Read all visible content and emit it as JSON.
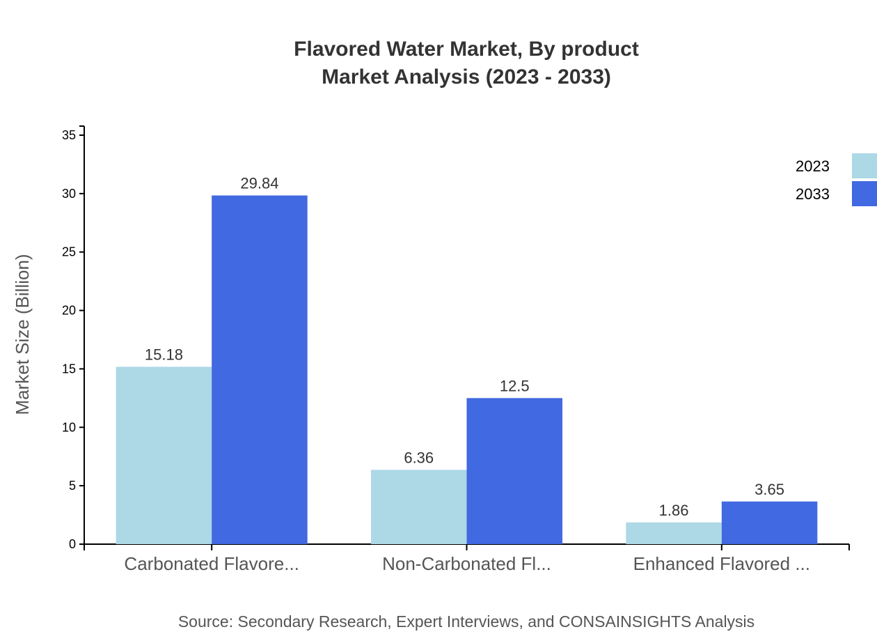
{
  "chart_data": {
    "type": "bar",
    "title": "Flavored Water Market, By product",
    "subtitle": "Market Analysis (2023 - 2033)",
    "xlabel": "",
    "ylabel": "Market Size (Billion)",
    "ylim": [
      0,
      35
    ],
    "yticks": [
      "0",
      "5",
      "10",
      "15",
      "20",
      "25",
      "30",
      "35"
    ],
    "categories": [
      "Carbonated Flavore...",
      "Non-Carbonated Fl...",
      "Enhanced Flavored ..."
    ],
    "series": [
      {
        "name": "2023",
        "color": "#ADD8E6",
        "values": [
          15.18,
          6.36,
          1.86
        ],
        "labels": [
          "15.18",
          "6.36",
          "1.86"
        ]
      },
      {
        "name": "2033",
        "color": "#4169E1",
        "values": [
          29.84,
          12.5,
          3.65
        ],
        "labels": [
          "29.84",
          "12.5",
          "3.65"
        ]
      }
    ],
    "legend": "top-right",
    "grid": false,
    "source": "Source: Secondary Research, Expert Interviews, and CONSAINSIGHTS Analysis"
  }
}
